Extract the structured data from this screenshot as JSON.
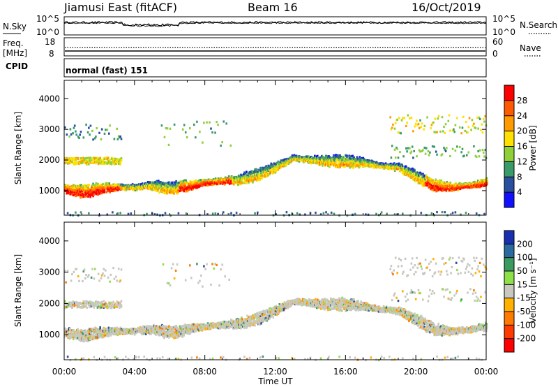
{
  "header": {
    "station": "Jiamusi East (fitACF)",
    "beam": "Beam 16",
    "date": "16/Oct/2019"
  },
  "panels": {
    "nsky": {
      "left_label": "N.Sky",
      "right_label": "N.Search",
      "left_ticks": [
        "10^5",
        "10^0"
      ],
      "right_ticks": [
        "10^5",
        "10^0"
      ]
    },
    "freq": {
      "left_label_1": "Freq.",
      "left_label_2": "[MHz]",
      "left_ticks": [
        "18",
        "8"
      ],
      "right_ticks": [
        "60",
        "0"
      ],
      "right_label": "Nave"
    },
    "cpid": {
      "label": "CPID",
      "value": "normal (fast) 151"
    }
  },
  "chart_data": [
    {
      "type": "heatmap",
      "name": "power",
      "ylabel": "Slant Range [km]",
      "yticks": [
        "4000",
        "3000",
        "2000",
        "1000"
      ],
      "xticks": [
        "00:00",
        "04:00",
        "08:00",
        "12:00",
        "16:00",
        "20:00",
        "00:00"
      ],
      "xlabel": "Time UT",
      "ylim": [
        200,
        4600
      ],
      "xlim_hours": [
        0,
        24
      ],
      "colorbar": {
        "label": "Power [dB]",
        "ticks": [
          "28",
          "24",
          "20",
          "16",
          "12",
          "8",
          "4"
        ],
        "colors": [
          "#ff0000",
          "#ff5a00",
          "#ff9a00",
          "#ffe000",
          "#8fcf3a",
          "#3a9a6a",
          "#2a4f9e",
          "#1010ff"
        ]
      },
      "echo_band_primary_km": [
        [
          0,
          1100
        ],
        [
          1,
          1000
        ],
        [
          2,
          1100
        ],
        [
          3,
          1150
        ],
        [
          4,
          1150
        ],
        [
          5,
          1200
        ],
        [
          6,
          1100
        ],
        [
          7,
          1200
        ],
        [
          8,
          1300
        ],
        [
          9,
          1350
        ],
        [
          10,
          1400
        ],
        [
          11,
          1550
        ],
        [
          12,
          1800
        ],
        [
          13,
          2100
        ],
        [
          14,
          2050
        ],
        [
          15,
          2000
        ],
        [
          16,
          2000
        ],
        [
          17,
          1950
        ],
        [
          18,
          1850
        ],
        [
          19,
          1800
        ],
        [
          20,
          1500
        ],
        [
          21,
          1200
        ],
        [
          22,
          1150
        ],
        [
          23,
          1200
        ],
        [
          24,
          1300
        ]
      ]
    },
    {
      "type": "heatmap",
      "name": "velocity",
      "ylabel": "Slant Range [km]",
      "yticks": [
        "4000",
        "3000",
        "2000",
        "1000"
      ],
      "xticks": [
        "00:00",
        "04:00",
        "08:00",
        "12:00",
        "16:00",
        "20:00",
        "00:00"
      ],
      "xlabel": "Time UT",
      "ylim": [
        200,
        4600
      ],
      "colorbar": {
        "label": "Velocity [m s⁻¹]",
        "ticks": [
          "200",
          "100",
          "50",
          "15",
          "-15",
          "-50",
          "-100",
          "-200"
        ],
        "colors": [
          "#1a2fb0",
          "#2a6aa0",
          "#3a9a60",
          "#8ee04a",
          "#c8c8c0",
          "#ffb000",
          "#ff7a00",
          "#ff3a00",
          "#ff0000"
        ]
      }
    }
  ]
}
